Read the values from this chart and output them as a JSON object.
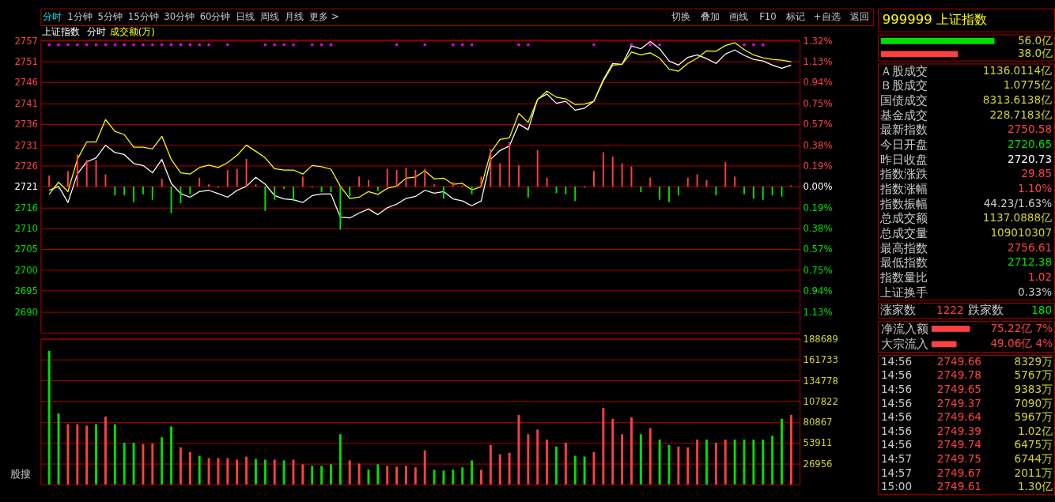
{
  "chart_data": [
    {
      "type": "other",
      "annotations": [
        "分时",
        "1分钟",
        "5分钟",
        "15分钟",
        "30分钟",
        "60分钟",
        "日线",
        "周线",
        "月线",
        "更多 >",
        "切换",
        "叠加",
        "画线",
        "F10",
        "标记",
        "+自选",
        "返回"
      ]
    },
    {
      "type": "line",
      "title": "上证指数",
      "annotations": [
        "分时",
        "成交额(万)"
      ],
      "categories": [
        null,
        null,
        null,
        null,
        null,
        null,
        null,
        null,
        null,
        null,
        null,
        null,
        null,
        null,
        null,
        null,
        null,
        null,
        null,
        null,
        null,
        null,
        null,
        null,
        null,
        null,
        null,
        null,
        null,
        null,
        null,
        null,
        null,
        null,
        null,
        null,
        null,
        null,
        null,
        null,
        null,
        null,
        null,
        null,
        null,
        null,
        null,
        null,
        null,
        null,
        null,
        null,
        null,
        null,
        null,
        null,
        null,
        null,
        null,
        null,
        null,
        null,
        null,
        null,
        null,
        null,
        null,
        null,
        null,
        null,
        null,
        null,
        null,
        null,
        null,
        null,
        null,
        null,
        null,
        null
      ],
      "ylim": [
        2684.8,
        2756.8
      ],
      "yticks": [
        {
          "value": 2689.95,
          "label": "2690"
        },
        {
          "value": 2695.08,
          "label": "2695"
        },
        {
          "value": 2700.21,
          "label": "2700"
        },
        {
          "value": 2705.34,
          "label": "2705"
        },
        {
          "value": 2710.47,
          "label": "2710"
        },
        {
          "value": 2715.6,
          "label": "2716"
        },
        {
          "value": 2720.73,
          "label": "2721"
        },
        {
          "value": 2725.86,
          "label": "2726"
        },
        {
          "value": 2730.99,
          "label": "2731"
        },
        {
          "value": 2736.12,
          "label": "2736"
        },
        {
          "value": 2741.25,
          "label": "2741"
        },
        {
          "value": 2746.38,
          "label": "2746"
        },
        {
          "value": 2751.49,
          "label": "2751"
        },
        {
          "value": 2756.64,
          "label": "2757"
        }
      ],
      "y2lim": [
        -1.3206,
        1.3257
      ],
      "y2ticks": [
        {
          "value": -1.1314,
          "label": "1.13%"
        },
        {
          "value": -0.9429,
          "label": "0.94%"
        },
        {
          "value": -0.7543,
          "label": "0.75%"
        },
        {
          "value": -0.5657,
          "label": "0.57%"
        },
        {
          "value": -0.3771,
          "label": "0.38%"
        },
        {
          "value": -0.1886,
          "label": "0.19%"
        },
        {
          "value": 0,
          "label": "0.00%"
        },
        {
          "value": 0.1886,
          "label": "0.19%"
        },
        {
          "value": 0.3771,
          "label": "0.38%"
        },
        {
          "value": 0.5657,
          "label": "0.57%"
        },
        {
          "value": 0.7543,
          "label": "0.75%"
        },
        {
          "value": 0.9429,
          "label": "0.94%"
        },
        {
          "value": 1.1314,
          "label": "1.13%"
        },
        {
          "value": 1.32,
          "label": "1.32%"
        }
      ],
      "grid": "y",
      "series": [
        {
          "type": "bar",
          "axis": "y2",
          "values": [
            0.1,
            -0.02,
            0.14,
            0.29,
            0.24,
            0.24,
            0.11,
            -0.08,
            -0.08,
            -0.14,
            -0.07,
            -0.12,
            0.07,
            -0.24,
            -0.15,
            -0.07,
            0.08,
            0.02,
            -0.01,
            0.15,
            0.16,
            0.25,
            0.02,
            -0.22,
            -0.12,
            -0.02,
            -0.13,
            0.09,
            -0.01,
            -0.05,
            -0.05,
            -0.39,
            -0.09,
            0.09,
            0.06,
            -0.04,
            0.16,
            0.15,
            0.17,
            0.15,
            0.16,
            0.02,
            -0.11,
            0.04,
            0.01,
            -0.07,
            0.09,
            0.34,
            0.21,
            0.4,
            0.19,
            -0.1,
            0.33,
            0.08,
            -0.06,
            -0.07,
            -0.13,
            -0.01,
            0.14,
            0.31,
            0.27,
            0.21,
            0.18,
            -0.05,
            0.08,
            -0.12,
            -0.14,
            -0.08,
            0.08,
            0.11,
            0.06,
            -0.08,
            0.22,
            0.09,
            -0.07,
            -0.11,
            -0.12,
            -0.08,
            -0.09,
            0.01
          ],
          "colors": [
            "#ff4040",
            "#00e000",
            "#ff4040",
            "#ff4040",
            "#ff4040",
            "#ff4040",
            "#ff4040",
            "#00e000",
            "#00e000",
            "#00e000",
            "#00e000",
            "#00e000",
            "#ff4040",
            "#00e000",
            "#00e000",
            "#00e000",
            "#ff4040",
            "#ff4040",
            "#00e000",
            "#ff4040",
            "#ff4040",
            "#ff4040",
            "#ff4040",
            "#00e000",
            "#00e000",
            "#00e000",
            "#00e000",
            "#ff4040",
            "#00e000",
            "#00e000",
            "#00e000",
            "#00e000",
            "#00e000",
            "#ff4040",
            "#ff4040",
            "#00e000",
            "#ff4040",
            "#ff4040",
            "#ff4040",
            "#ff4040",
            "#ff4040",
            "#ff4040",
            "#00e000",
            "#ff4040",
            "#ff4040",
            "#00e000",
            "#ff4040",
            "#ff4040",
            "#ff4040",
            "#ff4040",
            "#ff4040",
            "#00e000",
            "#ff4040",
            "#ff4040",
            "#00e000",
            "#00e000",
            "#00e000",
            "#00e000",
            "#ff4040",
            "#ff4040",
            "#ff4040",
            "#ff4040",
            "#ff4040",
            "#00e000",
            "#ff4040",
            "#00e000",
            "#00e000",
            "#00e000",
            "#ff4040",
            "#ff4040",
            "#ff4040",
            "#00e000",
            "#ff4040",
            "#ff4040",
            "#00e000",
            "#00e000",
            "#00e000",
            "#00e000",
            "#00e000",
            "#ff4040"
          ]
        },
        {
          "type": "line",
          "color": "#ffffff",
          "values": [
            2719.8,
            2720.8,
            2716.8,
            2723.8,
            2726.8,
            2727.8,
            2730.9,
            2729.1,
            2728.6,
            2726.4,
            2725.9,
            2724.1,
            2727.4,
            2721.5,
            2719.0,
            2718.1,
            2719.5,
            2719.8,
            2719.0,
            2718.1,
            2719.8,
            2720.8,
            2723.0,
            2721.3,
            2718.5,
            2717.7,
            2717.5,
            2716.8,
            2718.5,
            2718.9,
            2718.9,
            2713.2,
            2713.0,
            2714.2,
            2715.2,
            2713.8,
            2715.5,
            2716.4,
            2717.8,
            2718.3,
            2719.8,
            2719.1,
            2719.5,
            2717.7,
            2717.2,
            2716.0,
            2717.2,
            2727.4,
            2729.6,
            2730.7,
            2736.1,
            2734.7,
            2742.2,
            2743.5,
            2741.2,
            2741.7,
            2739.5,
            2740.0,
            2741.7,
            2747.0,
            2751.0,
            2750.8,
            2755.3,
            2754.6,
            2756.4,
            2754.6,
            2751.6,
            2750.6,
            2752.5,
            2753.1,
            2752.2,
            2751.0,
            2753.3,
            2754.3,
            2753.0,
            2752.0,
            2751.6,
            2750.6,
            2749.8,
            2750.6
          ]
        },
        {
          "type": "line",
          "color": "#ffff00",
          "values": [
            2718.8,
            2721.8,
            2719.5,
            2727.4,
            2731.7,
            2731.7,
            2737.2,
            2734.3,
            2733.5,
            2730.4,
            2730.4,
            2730.0,
            2733.1,
            2727.4,
            2724.1,
            2723.8,
            2725.4,
            2726.0,
            2725.4,
            2726.6,
            2728.4,
            2730.9,
            2729.4,
            2727.8,
            2725.1,
            2724.8,
            2724.8,
            2723.8,
            2725.9,
            2725.6,
            2725.0,
            2720.8,
            2717.8,
            2718.1,
            2719.5,
            2718.8,
            2720.3,
            2720.8,
            2722.8,
            2723.1,
            2724.6,
            2722.6,
            2722.8,
            2721.3,
            2721.5,
            2719.9,
            2720.7,
            2729.1,
            2732.3,
            2732.7,
            2738.7,
            2736.5,
            2742.1,
            2744.2,
            2742.7,
            2742.3,
            2740.9,
            2741.0,
            2741.7,
            2746.7,
            2750.6,
            2750.8,
            2753.8,
            2753.1,
            2753.6,
            2752.3,
            2749.6,
            2749.1,
            2751.0,
            2752.3,
            2754.1,
            2754.0,
            2755.4,
            2756.1,
            2754.4,
            2753.1,
            2752.4,
            2752.0,
            2751.8,
            2751.4
          ]
        },
        {
          "type": "scatter",
          "marker": "square",
          "color": "#ff00ff",
          "values": [
            2755.6,
            2755.6,
            2755.6,
            2755.6,
            2755.6,
            2755.6,
            2755.6,
            2755.6,
            2755.6,
            2755.6,
            2755.6,
            2755.6,
            2755.6,
            2755.6,
            2755.6,
            2755.6,
            2755.6,
            2755.6,
            null,
            2755.6,
            null,
            null,
            null,
            2755.6,
            2755.6,
            2755.6,
            2755.6,
            null,
            2755.6,
            2755.6,
            2755.6,
            null,
            null,
            null,
            null,
            null,
            null,
            2755.6,
            null,
            null,
            2755.6,
            null,
            null,
            2755.6,
            2755.6,
            2755.6,
            null,
            null,
            null,
            null,
            2755.6,
            2755.6,
            null,
            null,
            null,
            null,
            null,
            null,
            2755.6,
            null,
            null,
            null,
            2755.6,
            null,
            2755.6,
            2755.6,
            null,
            null,
            null,
            null,
            null,
            null,
            null,
            null,
            2755.6,
            2755.6,
            2755.6,
            null,
            null,
            null
          ]
        }
      ]
    },
    {
      "type": "bar",
      "annotations": [
        "股搜"
      ],
      "categories": [
        null,
        null,
        null,
        null,
        null,
        null,
        null,
        null,
        null,
        null,
        null,
        null,
        null,
        null,
        null,
        null,
        null,
        null,
        null,
        null,
        null,
        null,
        null,
        null,
        null,
        null,
        null,
        null,
        null,
        null,
        null,
        null,
        null,
        null,
        null,
        null,
        null,
        null,
        null,
        null,
        null,
        null,
        null,
        null,
        null,
        null,
        null,
        null,
        null,
        null,
        null,
        null,
        null,
        null,
        null,
        null,
        null,
        null,
        null,
        null,
        null,
        null,
        null,
        null,
        null,
        null,
        null,
        null,
        null,
        null,
        null,
        null,
        null,
        null,
        null,
        null,
        null,
        null,
        null,
        null
      ],
      "values": [
        173000,
        92000,
        78000,
        78000,
        76000,
        78000,
        88000,
        78000,
        54000,
        54000,
        52000,
        53000,
        61000,
        75000,
        48000,
        42000,
        37000,
        34000,
        34000,
        34000,
        32000,
        36000,
        33000,
        32000,
        32000,
        31000,
        32000,
        26000,
        24000,
        24000,
        26000,
        65000,
        31000,
        27000,
        19000,
        26000,
        24000,
        23000,
        24000,
        22000,
        44000,
        19000,
        18000,
        19000,
        22000,
        31000,
        19000,
        51000,
        39000,
        41000,
        90000,
        65000,
        71000,
        58000,
        49000,
        54000,
        37000,
        36000,
        42000,
        99000,
        85000,
        65000,
        87000,
        65000,
        73000,
        58000,
        51000,
        49000,
        48000,
        58000,
        58000,
        54000,
        58000,
        58000,
        58000,
        58000,
        58000,
        63000,
        85000,
        90000
      ],
      "colors": [
        "#00e000",
        "#00e000",
        "#ff4040",
        "#ff4040",
        "#ff4040",
        "#00e000",
        "#ff4040",
        "#00e000",
        "#00e000",
        "#00e000",
        "#ff4040",
        "#ff4040",
        "#00e000",
        "#00e000",
        "#ff4040",
        "#ff4040",
        "#00e000",
        "#ff4040",
        "#ff4040",
        "#ff4040",
        "#ff4040",
        "#ff4040",
        "#00e000",
        "#00e000",
        "#ff4040",
        "#00e000",
        "#ff4040",
        "#ff4040",
        "#00e000",
        "#00e000",
        "#00e000",
        "#00e000",
        "#ff4040",
        "#ff4040",
        "#00e000",
        "#00e000",
        "#ff4040",
        "#ff4040",
        "#ff4040",
        "#ff4040",
        "#ff4040",
        "#00e000",
        "#00e000",
        "#00e000",
        "#00e000",
        "#00e000",
        "#ff4040",
        "#ff4040",
        "#ff4040",
        "#ff4040",
        "#ff4040",
        "#ff4040",
        "#ff4040",
        "#ff4040",
        "#00e000",
        "#ff4040",
        "#00e000",
        "#00e000",
        "#ff4040",
        "#ff4040",
        "#ff4040",
        "#ff4040",
        "#ff4040",
        "#00e000",
        "#ff4040",
        "#00e000",
        "#00e000",
        "#ff4040",
        "#ff4040",
        "#ff4040",
        "#00e000",
        "#ff4040",
        "#ff4040",
        "#00e000",
        "#00e000",
        "#00e000",
        "#00e000",
        "#00e000",
        "#00e000",
        "#ff4040"
      ],
      "ylim": [
        0,
        188689
      ],
      "yticks": [
        26956,
        53911,
        80867,
        107822,
        134778,
        161733,
        188689
      ],
      "grid": "y"
    },
    {
      "type": "other",
      "title": "999999 上证指数"
    },
    {
      "type": "bar",
      "orientation": "horizontal",
      "categories": [
        null,
        null
      ],
      "values": [
        56.0,
        38.0
      ],
      "value_labels": [
        "56.0亿",
        "38.0亿"
      ],
      "colors": [
        "#00e000",
        "#ff4040"
      ]
    },
    {
      "type": "other",
      "categories": [
        "Ａ股成交",
        "Ｂ股成交",
        "国债成交",
        "基金成交",
        "最新指数",
        "今日开盘",
        "昨日收盘",
        "指数涨跌",
        "指数涨幅",
        "指数振幅",
        "总成交额",
        "总成交量",
        "最高指数",
        "最低指数",
        "指数量比",
        "上证换手"
      ],
      "value_labels": [
        "1136.0114亿",
        "1.0775亿",
        "8313.6138亿",
        "228.7183亿",
        "2750.58",
        "2720.65",
        "2720.73",
        "29.85",
        "1.10%",
        "44.23/1.63%",
        "1137.0888亿",
        "109010307",
        "2756.61",
        "2712.38",
        "1.02",
        "0.33%"
      ],
      "colors": [
        "#d2d232",
        "#d2d232",
        "#d2d232",
        "#d2d232",
        "#ff4040",
        "#00e000",
        "#ffffff",
        "#ff4040",
        "#ff4040",
        "#c8c8c8",
        "#d2d232",
        "#d2d232",
        "#ff4040",
        "#00e000",
        "#ff4040",
        "#c8c8c8"
      ]
    },
    {
      "type": "other",
      "categories": [
        "涨家数",
        "跌家数"
      ],
      "value_labels": [
        "1222",
        "180"
      ],
      "colors": [
        "#ff4040",
        "#00e000"
      ]
    },
    {
      "type": "bar",
      "orientation": "horizontal",
      "categories": [
        "净流入额",
        "大宗流入"
      ],
      "values": [
        75.22,
        49.06
      ],
      "value_labels": [
        "75.22亿  7%",
        "49.06亿  4%"
      ],
      "colors": [
        "#ff4040",
        "#ff4040"
      ]
    },
    {
      "type": "other",
      "annotations": [
        "14:56 2749.66 8329万",
        "14:56 2749.78 5767万",
        "14:56 2749.65 9383万",
        "14:56 2749.37 7090万",
        "14:56 2749.64 5967万",
        "14:56 2749.39 1.02亿",
        "14:56 2749.74 6475万",
        "14:57 2749.75 6744万",
        "14:57 2749.67 2011万",
        "15:00 2749.61 1.30亿"
      ]
    }
  ]
}
